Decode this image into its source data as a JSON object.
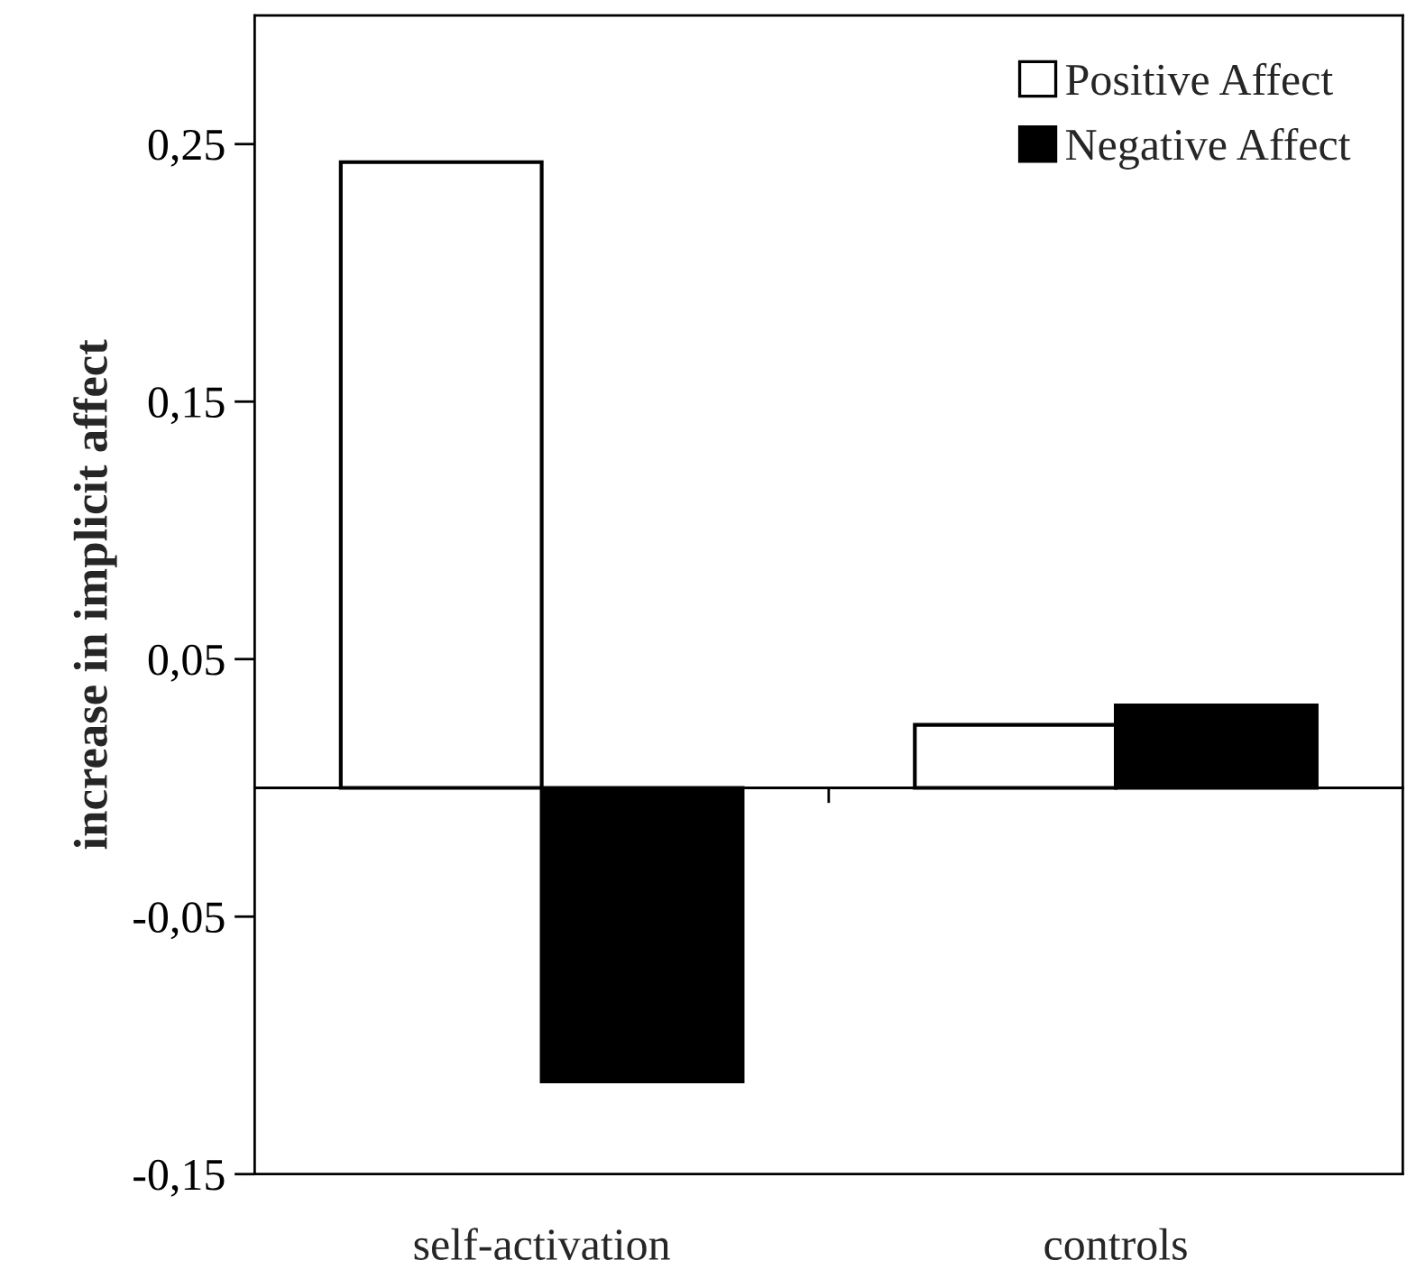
{
  "chart_data": {
    "type": "bar",
    "ylabel": "increase in implicit affect",
    "categories": [
      "self-activation",
      "controls"
    ],
    "series": [
      {
        "name": "Positive Affect",
        "color": "#ffffff",
        "values": [
          0.243,
          0.0245
        ]
      },
      {
        "name": "Negative Affect",
        "color": "#000000",
        "values": [
          -0.114,
          0.032
        ]
      }
    ],
    "ylim": [
      -0.15,
      0.3
    ],
    "yticks": [
      {
        "value": -0.15,
        "label": "-0,15"
      },
      {
        "value": -0.05,
        "label": "-0,05"
      },
      {
        "value": 0.05,
        "label": "0,05"
      },
      {
        "value": 0.15,
        "label": "0,15"
      },
      {
        "value": 0.25,
        "label": "0,25"
      }
    ],
    "legend": "top right",
    "grid": false
  }
}
